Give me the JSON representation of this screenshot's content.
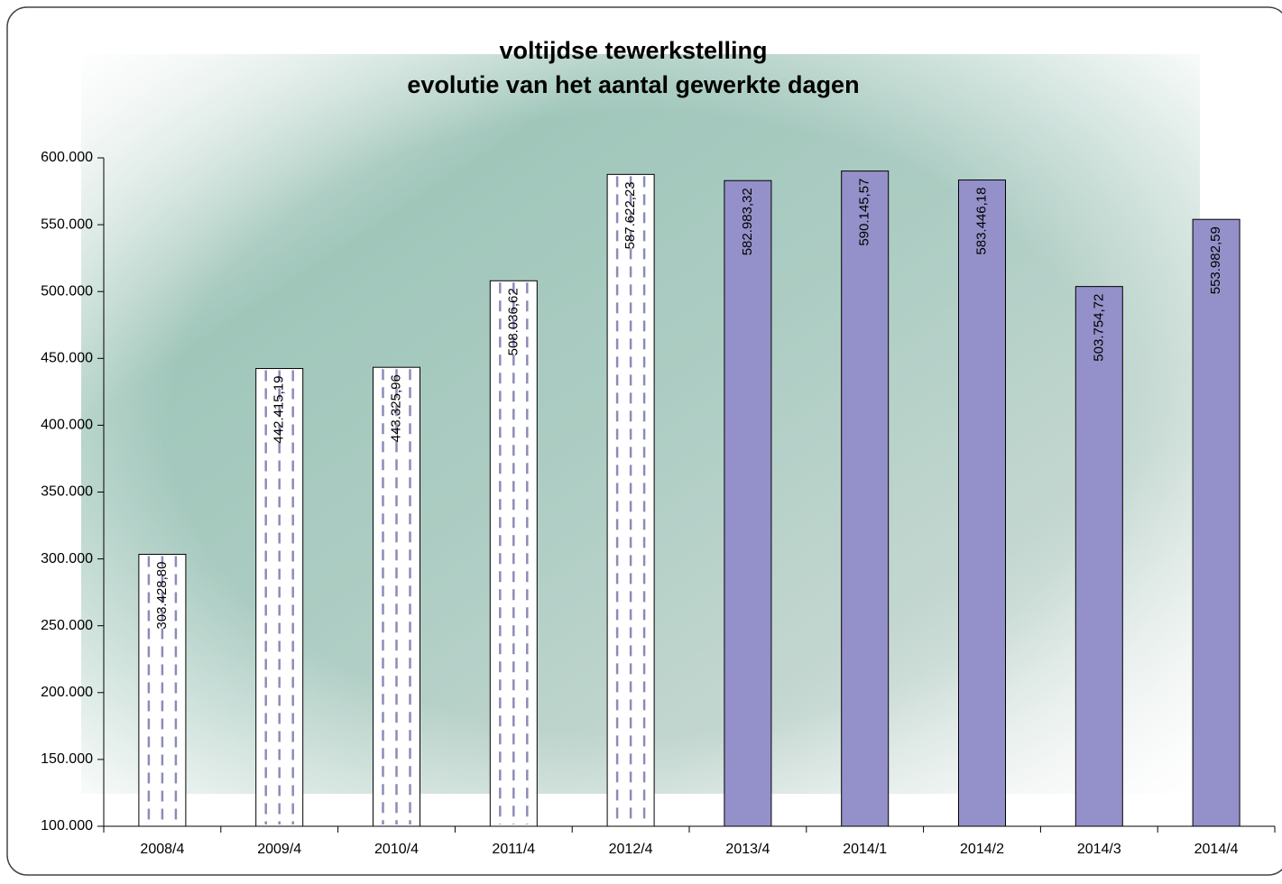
{
  "chart_data": {
    "type": "bar",
    "title": "voltijdse tewerkstelling",
    "subtitle": "evolutie van het aantal gewerkte dagen",
    "categories": [
      "2008/4",
      "2009/4",
      "2010/4",
      "2011/4",
      "2012/4",
      "2013/4",
      "2014/1",
      "2014/2",
      "2014/3",
      "2014/4"
    ],
    "values": [
      303428.8,
      442415.19,
      443325.96,
      508036.62,
      587622.23,
      582983.32,
      590145.57,
      583446.18,
      503754.72,
      553982.59
    ],
    "value_labels": [
      "303.428,80",
      "442.415,19",
      "443.325,96",
      "508.036,62",
      "587.622,23",
      "582.983,32",
      "590.145,57",
      "583.446,18",
      "503.754,72",
      "553.982,59"
    ],
    "colors": [
      "#ffffff",
      "#ffffff",
      "#ffffff",
      "#ffffff",
      "#ffffff",
      "#9490c9",
      "#9490c9",
      "#9490c9",
      "#9490c9",
      "#9490c9"
    ],
    "dashed": [
      true,
      true,
      true,
      true,
      true,
      false,
      false,
      false,
      false,
      false
    ],
    "dash_color": "#8c8cb8",
    "ylim": [
      100000,
      600000
    ],
    "yticks": [
      {
        "value": 100000,
        "label": "100.000"
      },
      {
        "value": 150000,
        "label": "150.000"
      },
      {
        "value": 200000,
        "label": "200.000"
      },
      {
        "value": 250000,
        "label": "250.000"
      },
      {
        "value": 300000,
        "label": "300.000"
      },
      {
        "value": 350000,
        "label": "350.000"
      },
      {
        "value": 400000,
        "label": "400.000"
      },
      {
        "value": 450000,
        "label": "450.000"
      },
      {
        "value": 500000,
        "label": "500.000"
      },
      {
        "value": 550000,
        "label": "550.000"
      },
      {
        "value": 600000,
        "label": "600.000"
      }
    ],
    "grid": false
  }
}
